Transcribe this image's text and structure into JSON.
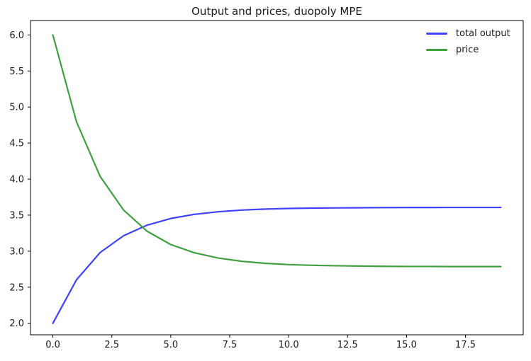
{
  "figure": {
    "background": "#ffffff",
    "text_color": "#1a1a1a",
    "spine_color": "#000000"
  },
  "chart_data": {
    "type": "line",
    "title": "Output and prices, duopoly MPE",
    "xlabel": "",
    "ylabel": "",
    "grid": false,
    "legend_position": "upper right",
    "xlim": [
      -0.95,
      19.95
    ],
    "ylim": [
      1.84,
      6.2
    ],
    "xticks": {
      "values": [
        0,
        2.5,
        5,
        7.5,
        10,
        12.5,
        15,
        17.5
      ],
      "labels": [
        "0.0",
        "2.5",
        "5.0",
        "7.5",
        "10.0",
        "12.5",
        "15.0",
        "17.5"
      ]
    },
    "yticks": {
      "values": [
        2.0,
        2.5,
        3.0,
        3.5,
        4.0,
        4.5,
        5.0,
        5.5,
        6.0
      ],
      "labels": [
        "2.0",
        "2.5",
        "3.0",
        "3.5",
        "4.0",
        "4.5",
        "5.0",
        "5.5",
        "6.0"
      ]
    },
    "x": [
      0,
      1,
      2,
      3,
      4,
      5,
      6,
      7,
      8,
      9,
      10,
      11,
      12,
      13,
      14,
      15,
      16,
      17,
      18,
      19
    ],
    "series": [
      {
        "name": "total output",
        "color": "#4040ff",
        "values": [
          2.0,
          2.602,
          2.98,
          3.215,
          3.362,
          3.454,
          3.511,
          3.547,
          3.57,
          3.584,
          3.593,
          3.598,
          3.601,
          3.603,
          3.605,
          3.606,
          3.606,
          3.607,
          3.607,
          3.607
        ]
      },
      {
        "name": "price",
        "color": "#40a040",
        "values": [
          6.0,
          4.796,
          4.04,
          3.57,
          3.276,
          3.092,
          2.978,
          2.906,
          2.86,
          2.832,
          2.814,
          2.804,
          2.798,
          2.794,
          2.79,
          2.788,
          2.788,
          2.786,
          2.786,
          2.786
        ]
      }
    ]
  }
}
